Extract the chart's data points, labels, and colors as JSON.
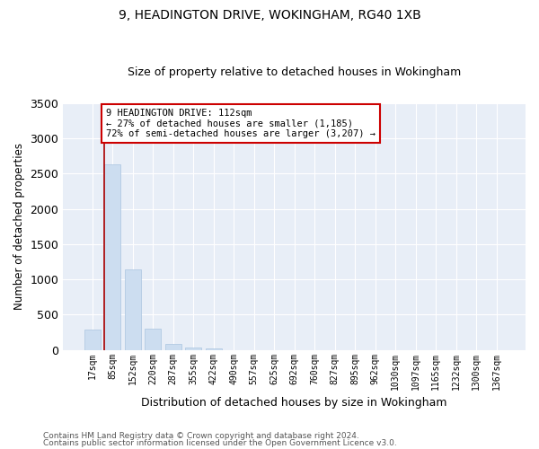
{
  "title": "9, HEADINGTON DRIVE, WOKINGHAM, RG40 1XB",
  "subtitle": "Size of property relative to detached houses in Wokingham",
  "xlabel": "Distribution of detached houses by size in Wokingham",
  "ylabel": "Number of detached properties",
  "bar_color": "#ccddf0",
  "bar_edge_color": "#aac4e0",
  "background_color": "#e8eef7",
  "grid_color": "#ffffff",
  "annotation_line_color": "#aa0000",
  "annotation_box_color": "#cc0000",
  "annotation_text": "9 HEADINGTON DRIVE: 112sqm\n← 27% of detached houses are smaller (1,185)\n72% of semi-detached houses are larger (3,207) →",
  "categories": [
    "17sqm",
    "85sqm",
    "152sqm",
    "220sqm",
    "287sqm",
    "355sqm",
    "422sqm",
    "490sqm",
    "557sqm",
    "625sqm",
    "692sqm",
    "760sqm",
    "827sqm",
    "895sqm",
    "962sqm",
    "1030sqm",
    "1097sqm",
    "1165sqm",
    "1232sqm",
    "1300sqm",
    "1367sqm"
  ],
  "values": [
    290,
    2630,
    1140,
    300,
    90,
    40,
    20,
    0,
    0,
    0,
    0,
    0,
    0,
    0,
    0,
    0,
    0,
    0,
    0,
    0,
    0
  ],
  "ylim": [
    0,
    3500
  ],
  "yticks": [
    0,
    500,
    1000,
    1500,
    2000,
    2500,
    3000,
    3500
  ],
  "footnote1": "Contains HM Land Registry data © Crown copyright and database right 2024.",
  "footnote2": "Contains public sector information licensed under the Open Government Licence v3.0."
}
